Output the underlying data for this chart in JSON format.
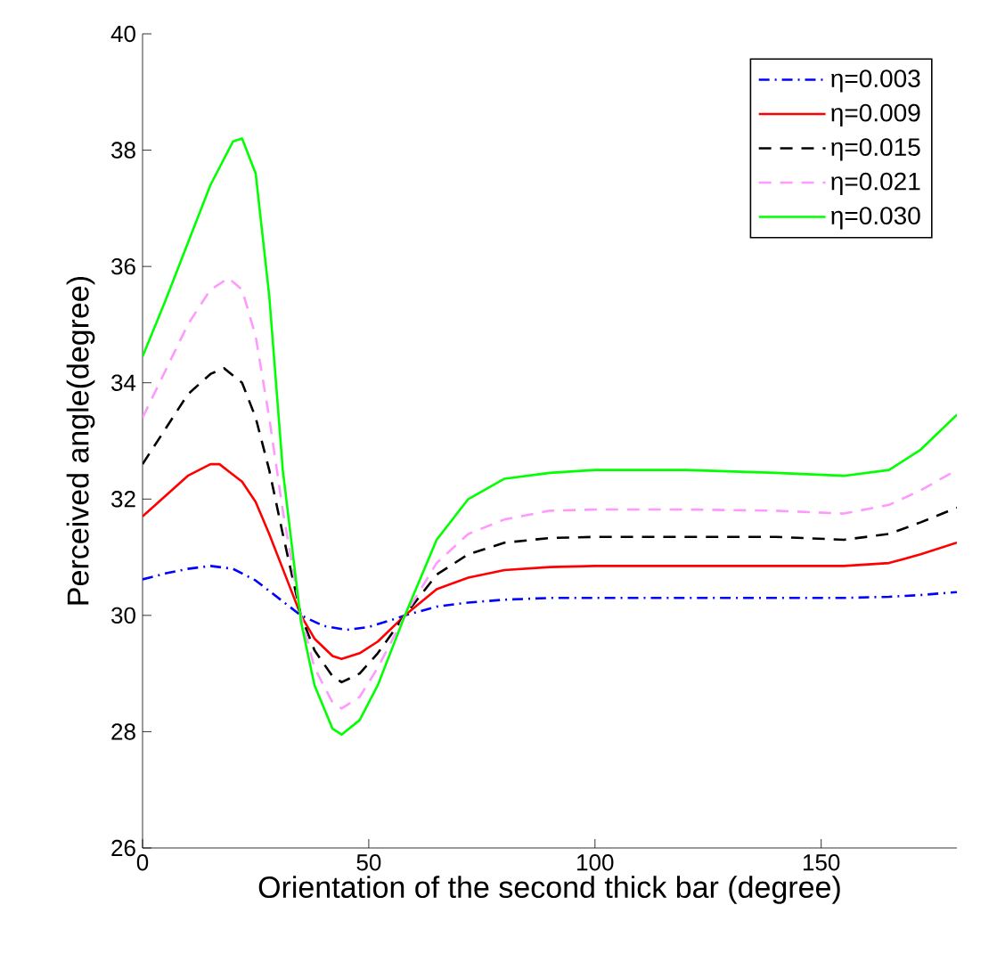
{
  "chart_data": {
    "type": "line",
    "xlabel": "Orientation of the second thick bar (degree)",
    "ylabel": "Perceived angle(degree)",
    "xlim": [
      0,
      180
    ],
    "ylim": [
      26,
      40
    ],
    "xticks": [
      0,
      50,
      100,
      150
    ],
    "yticks": [
      26,
      28,
      30,
      32,
      34,
      36,
      38,
      40
    ],
    "grid": false,
    "legend": "top right",
    "series": [
      {
        "name": "η=0.003",
        "color": "#0000ff",
        "line_style": "dashdot",
        "x": [
          0,
          5,
          10,
          15,
          20,
          25,
          30,
          35,
          40,
          45,
          50,
          55,
          58,
          65,
          72,
          80,
          90,
          100,
          120,
          140,
          155,
          165,
          172,
          180
        ],
        "values": [
          30.62,
          30.72,
          30.8,
          30.85,
          30.8,
          30.6,
          30.3,
          30.0,
          29.82,
          29.75,
          29.8,
          29.92,
          30.0,
          30.15,
          30.22,
          30.27,
          30.3,
          30.3,
          30.3,
          30.3,
          30.3,
          30.32,
          30.35,
          30.4
        ]
      },
      {
        "name": "η=0.009",
        "color": "#ff0000",
        "line_style": "solid",
        "x": [
          0,
          5,
          10,
          15,
          17,
          22,
          25,
          28,
          31,
          35,
          38,
          42,
          44,
          48,
          52,
          58,
          65,
          72,
          80,
          90,
          100,
          120,
          140,
          155,
          165,
          172,
          180
        ],
        "values": [
          31.7,
          32.05,
          32.4,
          32.6,
          32.6,
          32.3,
          31.95,
          31.4,
          30.8,
          30.0,
          29.6,
          29.3,
          29.25,
          29.35,
          29.55,
          30.0,
          30.45,
          30.65,
          30.78,
          30.83,
          30.85,
          30.85,
          30.85,
          30.85,
          30.9,
          31.05,
          31.25
        ]
      },
      {
        "name": "η=0.015",
        "color": "#000000",
        "line_style": "dashed",
        "x": [
          0,
          5,
          10,
          15,
          18,
          22,
          25,
          28,
          31,
          35,
          38,
          42,
          44,
          48,
          52,
          58,
          65,
          72,
          80,
          90,
          100,
          120,
          140,
          155,
          165,
          172,
          180
        ],
        "values": [
          32.6,
          33.2,
          33.8,
          34.15,
          34.25,
          34.0,
          33.4,
          32.5,
          31.4,
          30.0,
          29.4,
          28.95,
          28.85,
          29.0,
          29.35,
          30.0,
          30.7,
          31.05,
          31.25,
          31.33,
          31.35,
          31.35,
          31.35,
          31.3,
          31.4,
          31.6,
          31.85
        ]
      },
      {
        "name": "η=0.021",
        "color": "#ff99ff",
        "line_style": "dashed",
        "x": [
          0,
          5,
          10,
          15,
          19,
          22,
          25,
          28,
          31,
          35,
          38,
          42,
          44,
          48,
          52,
          58,
          65,
          72,
          80,
          90,
          100,
          120,
          140,
          155,
          165,
          172,
          180
        ],
        "values": [
          33.4,
          34.2,
          35.0,
          35.6,
          35.8,
          35.6,
          34.8,
          33.4,
          31.8,
          30.0,
          29.1,
          28.5,
          28.4,
          28.6,
          29.1,
          30.0,
          30.9,
          31.4,
          31.65,
          31.8,
          31.82,
          31.82,
          31.8,
          31.75,
          31.9,
          32.15,
          32.5
        ]
      },
      {
        "name": "η=0.030",
        "color": "#00ff00",
        "line_style": "solid",
        "x": [
          0,
          5,
          10,
          15,
          20,
          22,
          25,
          28,
          31,
          35,
          38,
          42,
          44,
          48,
          52,
          58,
          65,
          72,
          80,
          90,
          100,
          120,
          140,
          155,
          165,
          172,
          180
        ],
        "values": [
          34.45,
          35.4,
          36.4,
          37.4,
          38.15,
          38.2,
          37.6,
          35.5,
          32.5,
          29.9,
          28.8,
          28.05,
          27.95,
          28.2,
          28.8,
          30.0,
          31.3,
          32.0,
          32.35,
          32.45,
          32.5,
          32.5,
          32.45,
          32.4,
          32.5,
          32.85,
          33.45
        ]
      }
    ]
  }
}
